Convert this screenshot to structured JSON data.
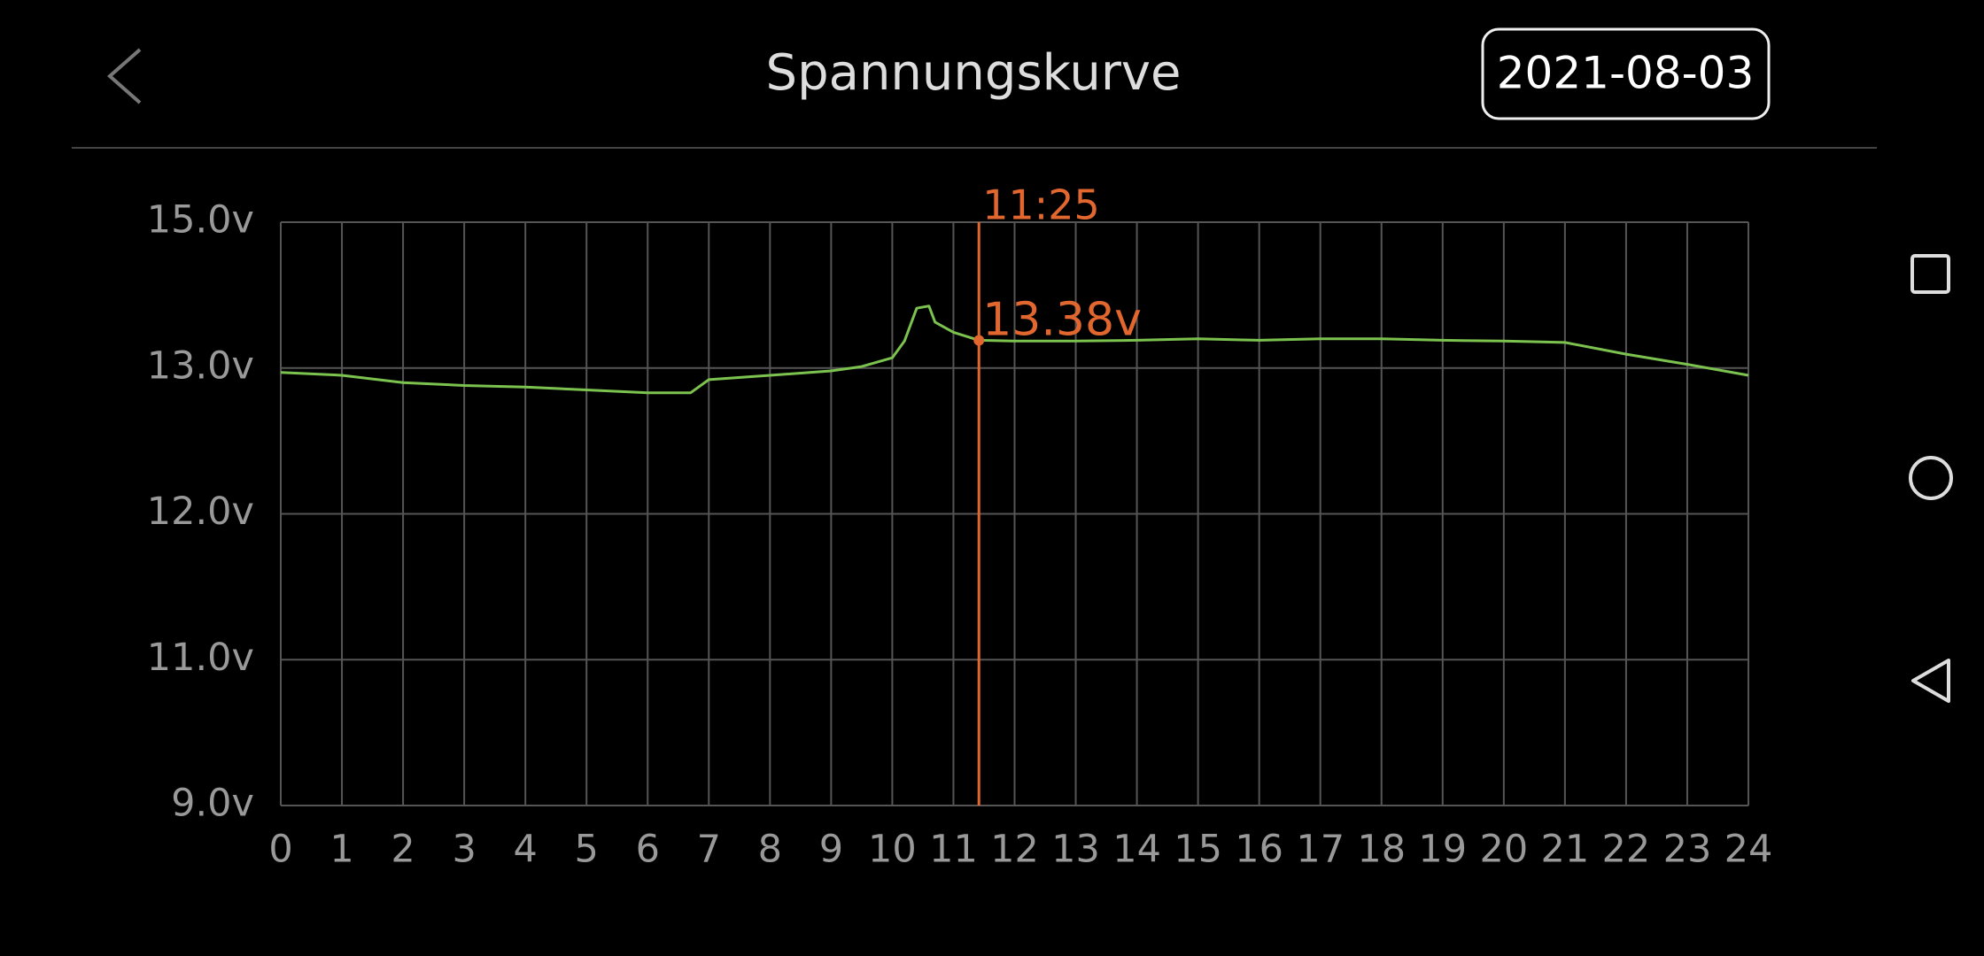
{
  "header": {
    "title": "Spannungskurve",
    "date": "2021-08-03"
  },
  "chart_data": {
    "type": "line",
    "x": [
      0,
      1,
      2,
      3,
      4,
      5,
      6,
      6.7,
      7,
      8,
      9,
      9.5,
      10,
      10.2,
      10.4,
      10.6,
      10.7,
      11,
      11.4167,
      12,
      13,
      14,
      15,
      16,
      17,
      18,
      19,
      20,
      21,
      22,
      23,
      24
    ],
    "values": [
      12.97,
      12.95,
      12.9,
      12.88,
      12.87,
      12.85,
      12.83,
      12.83,
      12.92,
      12.95,
      12.98,
      13.02,
      13.14,
      13.37,
      13.82,
      13.85,
      13.63,
      13.49,
      13.38,
      13.37,
      13.37,
      13.38,
      13.4,
      13.38,
      13.4,
      13.4,
      13.38,
      13.37,
      13.35,
      13.19,
      13.05,
      12.95
    ],
    "color": "#7cc24f",
    "xlim": [
      0,
      24
    ],
    "xticks": [
      0,
      1,
      2,
      3,
      4,
      5,
      6,
      7,
      8,
      9,
      10,
      11,
      12,
      13,
      14,
      15,
      16,
      17,
      18,
      19,
      20,
      21,
      22,
      23,
      24
    ],
    "ylim": [
      9,
      15
    ],
    "yticks": [
      {
        "value": 9,
        "label": "9.0v"
      },
      {
        "value": 11,
        "label": "11.0v"
      },
      {
        "value": 12,
        "label": "12.0v"
      },
      {
        "value": 13,
        "label": "13.0v"
      },
      {
        "value": 15,
        "label": "15.0v"
      }
    ],
    "yscale": "tick-spaced",
    "grid": true,
    "cursor": {
      "x": 11.4167,
      "x_label": "11:25",
      "value": 13.38,
      "value_label": "13.38v",
      "color": "#e2672f"
    }
  }
}
